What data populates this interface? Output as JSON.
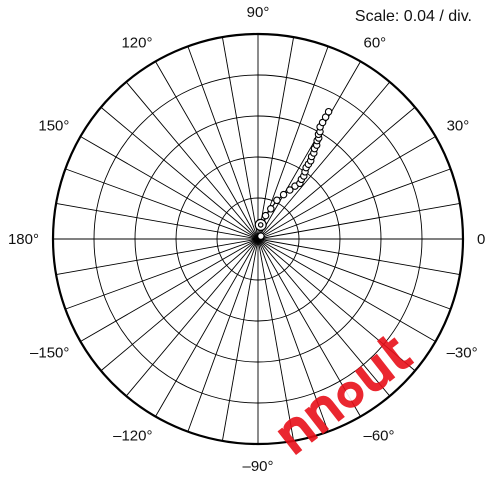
{
  "chart_data": {
    "type": "scatter",
    "coordinate_system": "polar",
    "scale_text": "Scale: 0.04 / div.",
    "rings": 5,
    "radial_unit_per_div": 0.04,
    "r_max": 0.2,
    "spoke_step_deg": 10,
    "angle_labels": [
      {
        "deg": 0,
        "text": "0"
      },
      {
        "deg": 30,
        "text": "30°"
      },
      {
        "deg": 60,
        "text": "60°"
      },
      {
        "deg": 90,
        "text": "90°"
      },
      {
        "deg": 120,
        "text": "120°"
      },
      {
        "deg": 150,
        "text": "150°"
      },
      {
        "deg": 180,
        "text": "180°"
      },
      {
        "deg": -150,
        "text": "–150°"
      },
      {
        "deg": -120,
        "text": "–120°"
      },
      {
        "deg": -90,
        "text": "–90°"
      },
      {
        "deg": -60,
        "text": "–60°"
      },
      {
        "deg": -30,
        "text": "–30°"
      }
    ],
    "points": [
      {
        "r": 0.004,
        "theta": 45
      },
      {
        "r": 0.024,
        "theta": 72
      },
      {
        "r": 0.032,
        "theta": 67
      },
      {
        "r": 0.042,
        "theta": 64
      },
      {
        "r": 0.05,
        "theta": 60
      },
      {
        "r": 0.057,
        "theta": 57
      },
      {
        "r": 0.063,
        "theta": 55
      },
      {
        "r": 0.068,
        "theta": 53
      },
      {
        "r": 0.072,
        "theta": 54
      },
      {
        "r": 0.076,
        "theta": 54
      },
      {
        "r": 0.08,
        "theta": 55
      },
      {
        "r": 0.084,
        "theta": 56
      },
      {
        "r": 0.088,
        "theta": 56
      },
      {
        "r": 0.092,
        "theta": 56
      },
      {
        "r": 0.096,
        "theta": 57
      },
      {
        "r": 0.1,
        "theta": 57
      },
      {
        "r": 0.104,
        "theta": 58
      },
      {
        "r": 0.108,
        "theta": 58
      },
      {
        "r": 0.112,
        "theta": 59
      },
      {
        "r": 0.115,
        "theta": 59
      },
      {
        "r": 0.118,
        "theta": 60
      },
      {
        "r": 0.121,
        "theta": 60
      },
      {
        "r": 0.125,
        "theta": 61
      },
      {
        "r": 0.13,
        "theta": 61
      },
      {
        "r": 0.136,
        "theta": 61
      },
      {
        "r": 0.142,
        "theta": 61
      }
    ],
    "center_marker": {
      "r": 0.014,
      "theta": 79
    },
    "colors": {
      "line": "#000000",
      "point_fill": "#ffffff",
      "watermark": "#e8101a"
    }
  }
}
